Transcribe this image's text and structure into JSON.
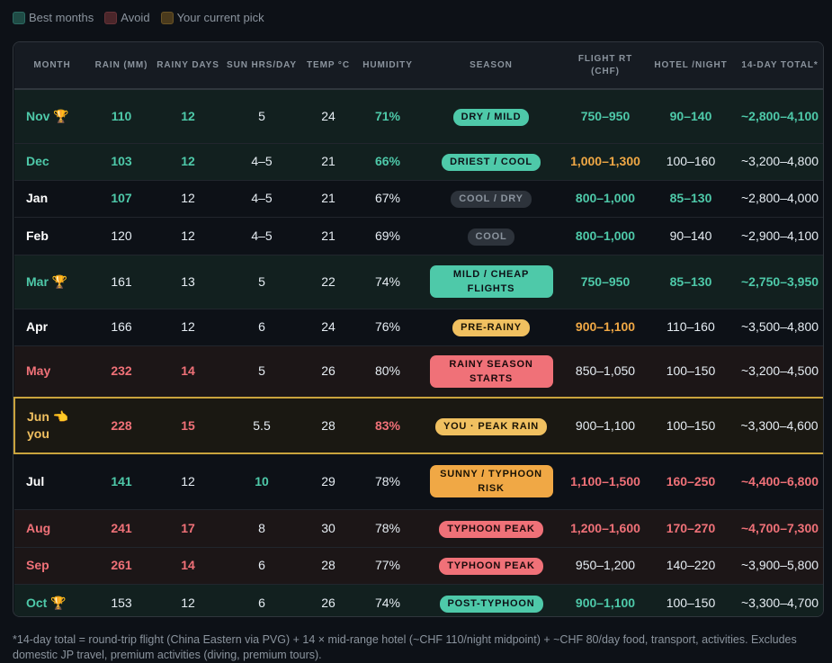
{
  "legend": [
    {
      "label": "Best months",
      "color": "#1f4b45"
    },
    {
      "label": "Avoid",
      "color": "#4b262a"
    },
    {
      "label": "Your current pick",
      "color": "#4a3a1c"
    }
  ],
  "headers": [
    "MONTH",
    "RAIN (MM)",
    "RAINY DAYS",
    "SUN HRS/DAY",
    "TEMP °C",
    "HUMIDITY",
    "SEASON",
    "FLIGHT RT (CHF)",
    "HOTEL /NIGHT",
    "14-DAY TOTAL*"
  ],
  "rows": [
    {
      "month": "Nov 🏆",
      "rain": "110",
      "rainy_days": "12",
      "sun": "5",
      "temp": "24",
      "humidity": "71%",
      "season": "DRY / MILD",
      "flight": "750–950",
      "hotel": "90–140",
      "total": "~2,800–4,100"
    },
    {
      "month": "Dec",
      "rain": "103",
      "rainy_days": "12",
      "sun": "4–5",
      "temp": "21",
      "humidity": "66%",
      "season": "DRIEST / COOL",
      "flight": "1,000–1,300",
      "hotel": "100–160",
      "total": "~3,200–4,800"
    },
    {
      "month": "Jan",
      "rain": "107",
      "rainy_days": "12",
      "sun": "4–5",
      "temp": "21",
      "humidity": "67%",
      "season": "COOL / DRY",
      "flight": "800–1,000",
      "hotel": "85–130",
      "total": "~2,800–4,000"
    },
    {
      "month": "Feb",
      "rain": "120",
      "rainy_days": "12",
      "sun": "4–5",
      "temp": "21",
      "humidity": "69%",
      "season": "COOL",
      "flight": "800–1,000",
      "hotel": "90–140",
      "total": "~2,900–4,100"
    },
    {
      "month": "Mar 🏆",
      "rain": "161",
      "rainy_days": "13",
      "sun": "5",
      "temp": "22",
      "humidity": "74%",
      "season": "MILD / CHEAP FLIGHTS",
      "flight": "750–950",
      "hotel": "85–130",
      "total": "~2,750–3,950"
    },
    {
      "month": "Apr",
      "rain": "166",
      "rainy_days": "12",
      "sun": "6",
      "temp": "24",
      "humidity": "76%",
      "season": "PRE-RAINY",
      "flight": "900–1,100",
      "hotel": "110–160",
      "total": "~3,500–4,800"
    },
    {
      "month": "May",
      "rain": "232",
      "rainy_days": "14",
      "sun": "5",
      "temp": "26",
      "humidity": "80%",
      "season": "RAINY SEASON STARTS",
      "flight": "850–1,050",
      "hotel": "100–150",
      "total": "~3,200–4,500"
    },
    {
      "month": "Jun 👈",
      "month_sub": "you",
      "rain": "228",
      "rainy_days": "15",
      "sun": "5.5",
      "temp": "28",
      "humidity": "83%",
      "season": "YOU · PEAK RAIN",
      "flight": "900–1,100",
      "hotel": "100–150",
      "total": "~3,300–4,600"
    },
    {
      "month": "Jul",
      "rain": "141",
      "rainy_days": "12",
      "sun": "10",
      "temp": "29",
      "humidity": "78%",
      "season": "SUNNY / TYPHOON RISK",
      "flight": "1,100–1,500",
      "hotel": "160–250",
      "total": "~4,400–6,800"
    },
    {
      "month": "Aug",
      "rain": "241",
      "rainy_days": "17",
      "sun": "8",
      "temp": "30",
      "humidity": "78%",
      "season": "TYPHOON PEAK",
      "flight": "1,200–1,600",
      "hotel": "170–270",
      "total": "~4,700–7,300"
    },
    {
      "month": "Sep",
      "rain": "261",
      "rainy_days": "14",
      "sun": "6",
      "temp": "28",
      "humidity": "77%",
      "season": "TYPHOON PEAK",
      "flight": "950–1,200",
      "hotel": "140–220",
      "total": "~3,900–5,800"
    },
    {
      "month": "Oct 🏆",
      "rain": "153",
      "rainy_days": "12",
      "sun": "6",
      "temp": "26",
      "humidity": "74%",
      "season": "POST-TYPHOON",
      "flight": "900–1,100",
      "hotel": "100–150",
      "total": "~3,300–4,700"
    }
  ],
  "footnote": "*14-day total = round-trip flight (China Eastern via PVG) + 14 × mid-range hotel (~CHF 110/night midpoint) + ~CHF 80/day food, transport, activities. Excludes domestic JP travel, premium activities (diving, premium tours)."
}
